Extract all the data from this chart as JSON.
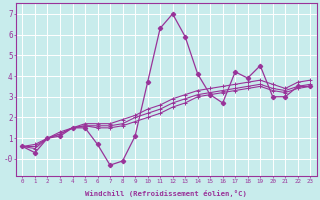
{
  "xlabel": "Windchill (Refroidissement éolien,°C)",
  "bg_color": "#c8ecec",
  "grid_color": "#b0d8d8",
  "line_color": "#993399",
  "series": [
    [
      0.6,
      0.3,
      1.0,
      1.1,
      1.5,
      1.5,
      0.7,
      -0.3,
      -0.1,
      1.1,
      3.7,
      6.3,
      7.0,
      5.9,
      4.1,
      3.1,
      2.7,
      4.2,
      3.9,
      4.5,
      3.0,
      3.0,
      3.5,
      3.5
    ],
    [
      0.6,
      0.5,
      1.0,
      1.2,
      1.5,
      1.6,
      1.5,
      1.5,
      1.6,
      1.8,
      2.0,
      2.2,
      2.5,
      2.7,
      3.0,
      3.1,
      3.2,
      3.3,
      3.4,
      3.5,
      3.3,
      3.2,
      3.4,
      3.5
    ],
    [
      0.6,
      0.6,
      1.0,
      1.2,
      1.5,
      1.6,
      1.6,
      1.6,
      1.7,
      2.0,
      2.2,
      2.4,
      2.7,
      2.9,
      3.1,
      3.2,
      3.3,
      3.4,
      3.5,
      3.6,
      3.4,
      3.3,
      3.5,
      3.6
    ],
    [
      0.6,
      0.7,
      1.0,
      1.3,
      1.5,
      1.7,
      1.7,
      1.7,
      1.9,
      2.1,
      2.4,
      2.6,
      2.9,
      3.1,
      3.3,
      3.4,
      3.5,
      3.6,
      3.7,
      3.8,
      3.6,
      3.4,
      3.7,
      3.8
    ]
  ],
  "x_data": [
    0,
    1,
    2,
    3,
    4,
    5,
    6,
    7,
    8,
    9,
    10,
    11,
    12,
    13,
    14,
    15,
    16,
    17,
    18,
    19,
    20,
    21,
    22,
    23
  ],
  "xlim": [
    -0.5,
    23.5
  ],
  "ylim": [
    -0.8,
    7.5
  ],
  "yticks": [
    0,
    1,
    2,
    3,
    4,
    5,
    6,
    7
  ],
  "ytick_labels": [
    "-0",
    "1",
    "2",
    "3",
    "4",
    "5",
    "6",
    "7"
  ],
  "xticks": [
    0,
    1,
    2,
    3,
    4,
    5,
    6,
    7,
    8,
    9,
    10,
    11,
    12,
    13,
    14,
    15,
    16,
    17,
    18,
    19,
    20,
    21,
    22,
    23
  ]
}
